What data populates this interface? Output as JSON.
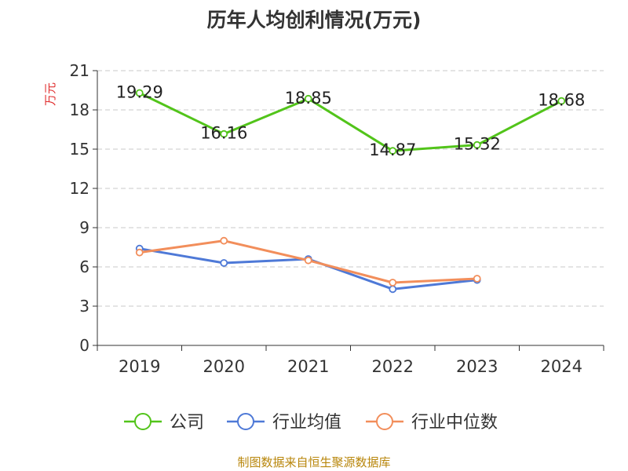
{
  "title": "历年人均创利情况(万元)",
  "footer": "制图数据来自恒生聚源数据库",
  "chart_data": {
    "type": "line",
    "title": "历年人均创利情况(万元)",
    "ylabel": "万元",
    "xlabel": "",
    "categories": [
      "2019",
      "2020",
      "2021",
      "2022",
      "2023",
      "2024"
    ],
    "ylim": [
      0,
      21
    ],
    "yticks": [
      0,
      3,
      6,
      9,
      12,
      15,
      18,
      21
    ],
    "grid": true,
    "legend_position": "bottom",
    "series": [
      {
        "name": "公司",
        "color": "#52c41a",
        "values": [
          19.29,
          16.16,
          18.85,
          14.87,
          15.32,
          18.68
        ],
        "labels": [
          "19.29",
          "16.16",
          "18.85",
          "14.87",
          "15.32",
          "18.68"
        ]
      },
      {
        "name": "行业均值",
        "color": "#4e79d7",
        "values": [
          7.4,
          6.3,
          6.6,
          4.3,
          5.0,
          null
        ]
      },
      {
        "name": "行业中位数",
        "color": "#f28e5b",
        "values": [
          7.1,
          8.0,
          6.5,
          4.8,
          5.1,
          null
        ]
      }
    ]
  }
}
